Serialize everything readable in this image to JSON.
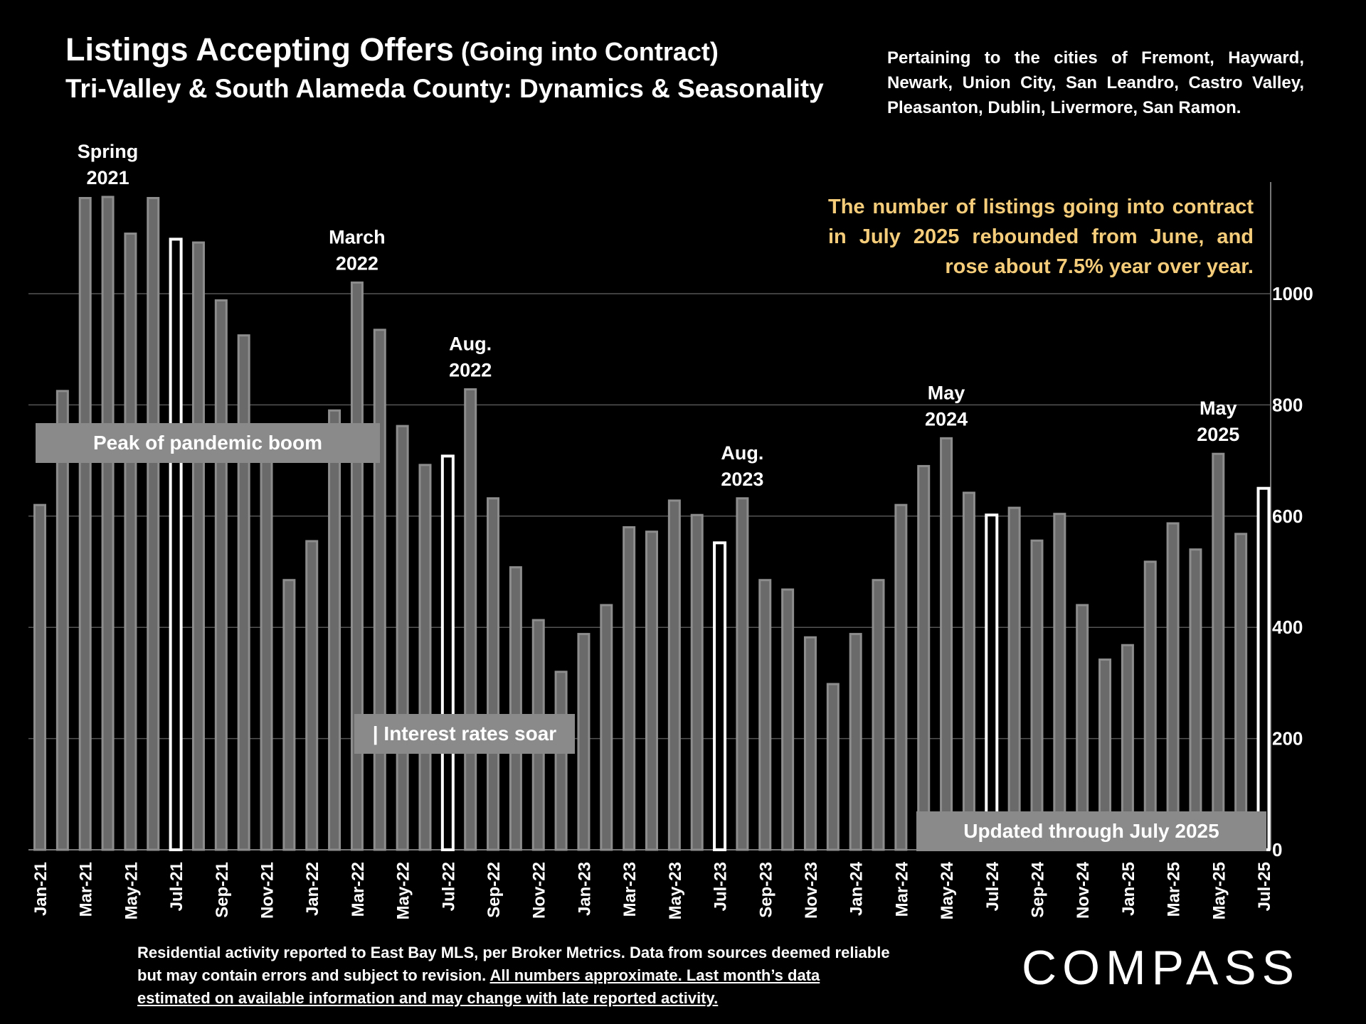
{
  "header": {
    "title": "Listings Accepting Offers",
    "title_suffix": " (Going into Contract)",
    "subtitle": "Tri-Valley & South Alameda County: Dynamics & Seasonality"
  },
  "cities_note": "Pertaining to the cities of Fremont, Hayward, Newark, Union City, San Leandro, Castro Valley, Pleasanton, Dublin, Livermore, San Ramon.",
  "callout": "The number of listings going into contract in July 2025 rebounded from June, and rose about 7.5% year over year.",
  "callout_color": "#f5cd7a",
  "bar_color": "#6a6a6a",
  "highlight_color": "#ffffff",
  "label_boxes": {
    "pandemic": "Peak of pandemic boom",
    "rates": "| Interest rates soar",
    "updated": "Updated through July 2025"
  },
  "footnote": {
    "plain": "Residential activity reported to East Bay MLS, per Broker Metrics. Data from sources deemed reliable but may contain errors and subject to revision.",
    "underlined": "All numbers approximate. Last month’s data estimated on available information and may change with late reported activity."
  },
  "logo": "COMPASS",
  "chart_data": {
    "type": "bar",
    "categories": [
      "Jan-21",
      "Feb-21",
      "Mar-21",
      "Apr-21",
      "May-21",
      "Jun-21",
      "Jul-21",
      "Aug-21",
      "Sep-21",
      "Oct-21",
      "Nov-21",
      "Dec-21",
      "Jan-22",
      "Feb-22",
      "Mar-22",
      "Apr-22",
      "May-22",
      "Jun-22",
      "Jul-22",
      "Aug-22",
      "Sep-22",
      "Oct-22",
      "Nov-22",
      "Dec-22",
      "Jan-23",
      "Feb-23",
      "Mar-23",
      "Apr-23",
      "May-23",
      "Jun-23",
      "Jul-23",
      "Aug-23",
      "Sep-23",
      "Oct-23",
      "Nov-23",
      "Dec-23",
      "Jan-24",
      "Feb-24",
      "Mar-24",
      "Apr-24",
      "May-24",
      "Jun-24",
      "Jul-24",
      "Aug-24",
      "Sep-24",
      "Oct-24",
      "Nov-24",
      "Dec-24",
      "Jan-25",
      "Feb-25",
      "Mar-25",
      "Apr-25",
      "May-25",
      "Jun-25",
      "Jul-25"
    ],
    "tick_labels": [
      "Jan-21",
      "Mar-21",
      "May-21",
      "Jul-21",
      "Sep-21",
      "Nov-21",
      "Jan-22",
      "Mar-22",
      "May-22",
      "Jul-22",
      "Sep-22",
      "Nov-22",
      "Jan-23",
      "Mar-23",
      "May-23",
      "Jul-23",
      "Sep-23",
      "Nov-23",
      "Jan-24",
      "Mar-24",
      "May-24",
      "Jul-24",
      "Sep-24",
      "Nov-24",
      "Jan-25",
      "Mar-25",
      "May-25",
      "Jul-25"
    ],
    "values": [
      620,
      825,
      1172,
      1174,
      1108,
      1172,
      1098,
      1092,
      988,
      925,
      715,
      485,
      555,
      790,
      1020,
      935,
      762,
      692,
      708,
      828,
      632,
      508,
      413,
      320,
      388,
      440,
      580,
      572,
      628,
      602,
      552,
      632,
      485,
      468,
      382,
      298,
      388,
      485,
      620,
      690,
      740,
      642,
      602,
      615,
      556,
      604,
      440,
      342,
      368,
      518,
      587,
      540,
      712,
      568,
      650
    ],
    "highlighted": [
      "Jul-21",
      "Jul-22",
      "Jul-23",
      "Jul-24",
      "Jul-25"
    ],
    "ylim": [
      0,
      1200
    ],
    "yticks": [
      0,
      200,
      400,
      600,
      800,
      1000
    ],
    "y_axis_side": "right",
    "grid": true,
    "annotations": [
      {
        "at": "Apr-21",
        "lines": [
          "Spring",
          "2021"
        ]
      },
      {
        "at": "Mar-22",
        "lines": [
          "March",
          "2022"
        ]
      },
      {
        "at": "Aug-22",
        "lines": [
          "Aug.",
          "2022"
        ]
      },
      {
        "at": "Aug-23",
        "lines": [
          "Aug.",
          "2023"
        ]
      },
      {
        "at": "May-24",
        "lines": [
          "May",
          "2024"
        ]
      },
      {
        "at": "May-25",
        "lines": [
          "May",
          "2025"
        ]
      }
    ]
  }
}
